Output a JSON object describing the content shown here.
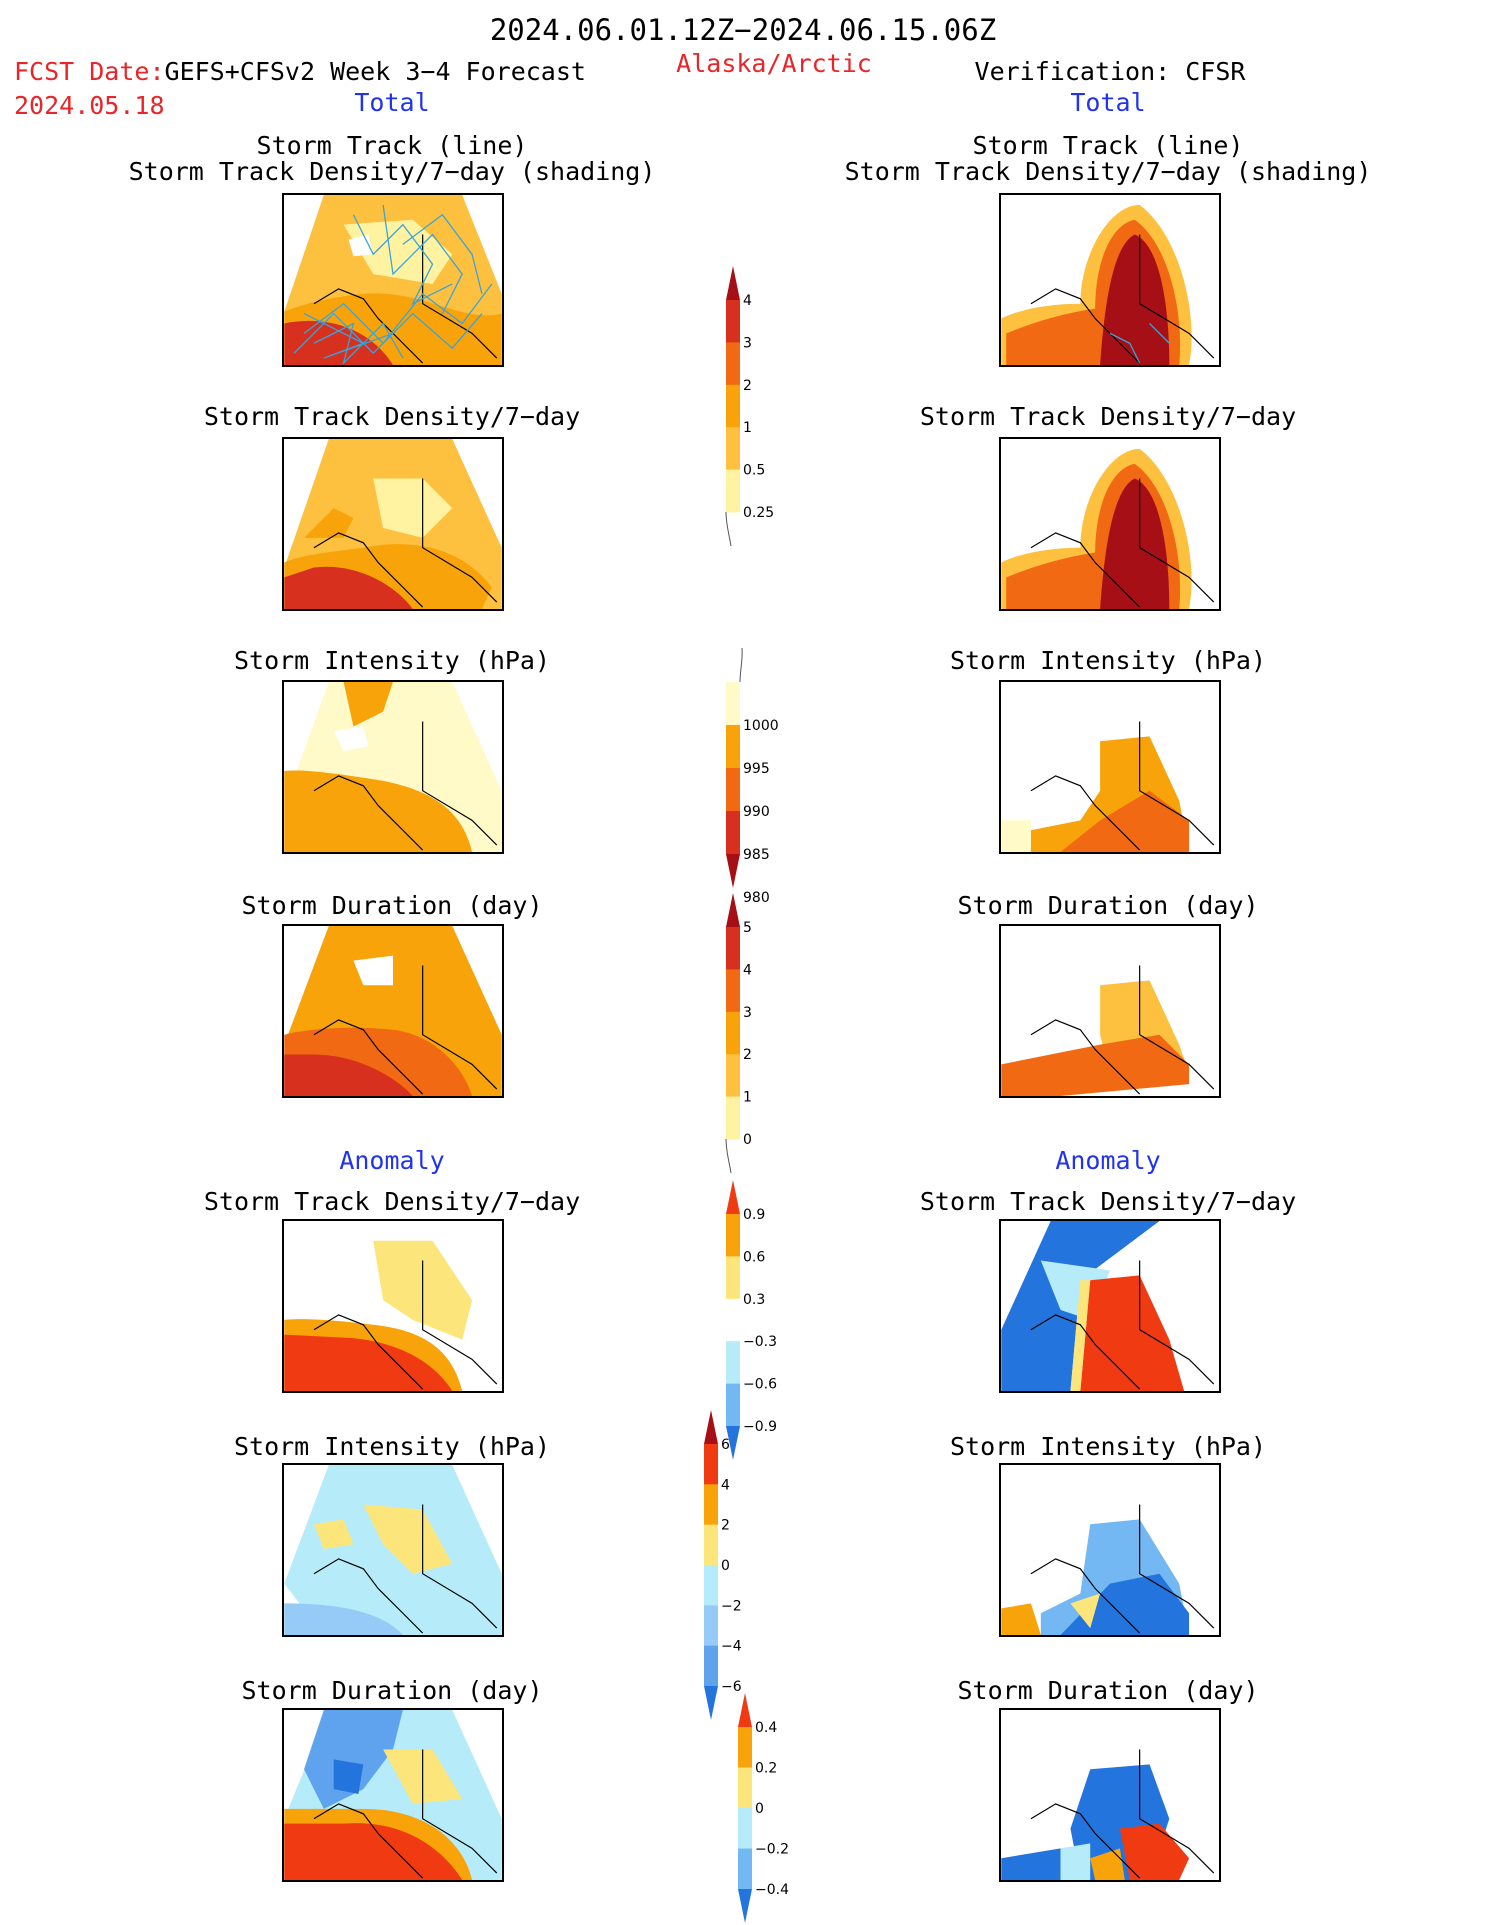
{
  "header": {
    "period": "2024.06.01.12Z−2024.06.15.06Z",
    "fcst_label": "FCST Date:",
    "fcst_model": "GEFS+CFSv2 Week 3−4 Forecast",
    "fcst_date": "2024.05.18",
    "region": "Alaska/Arctic",
    "verification": "Verification: CFSR"
  },
  "sections": {
    "total_left": "Total",
    "total_right": "Total",
    "anomaly_left": "Anomaly",
    "anomaly_right": "Anomaly"
  },
  "titles": {
    "track_line": "Storm Track (line)",
    "track_density_shading": "Storm Track Density/7−day (shading)",
    "track_density": "Storm Track Density/7−day",
    "intensity": "Storm Intensity (hPa)",
    "duration": "Storm Duration (day)"
  },
  "colorbars": {
    "density_total": {
      "labels": [
        "4",
        "3",
        "2",
        "1",
        "0.5",
        "0.25"
      ],
      "colors": [
        "#a50f15",
        "#d7301f",
        "#f16913",
        "#f8a30a",
        "#fdc13f",
        "#fff2a1"
      ]
    },
    "intensity_total": {
      "labels": [
        "1000",
        "995",
        "990",
        "985",
        "980"
      ],
      "colors": [
        "#fffac8",
        "#f8a30a",
        "#f16913",
        "#d7301f",
        "#a50f15"
      ]
    },
    "duration_total": {
      "labels": [
        "5",
        "4",
        "3",
        "2",
        "1",
        "0"
      ],
      "colors": [
        "#a50f15",
        "#d7301f",
        "#f16913",
        "#f8a30a",
        "#fdc13f",
        "#fff2a1"
      ]
    },
    "density_anom": {
      "labels": [
        "0.9",
        "0.6",
        "0.3",
        "−0.3",
        "−0.6",
        "−0.9"
      ],
      "colors": [
        "#f03b12",
        "#f8a30a",
        "#fce57a",
        "#ffffff",
        "#b6ecfa",
        "#73b8f2",
        "#2474dd"
      ]
    },
    "intensity_anom": {
      "labels": [
        "6",
        "4",
        "2",
        "0",
        "−2",
        "−4",
        "−6"
      ],
      "colors": [
        "#a50f15",
        "#f03b12",
        "#f8a30a",
        "#fce57a",
        "#b6ecfa",
        "#97cbf7",
        "#5fa3ef",
        "#2474dd"
      ]
    },
    "duration_anom": {
      "labels": [
        "0.4",
        "0.2",
        "0",
        "−0.2",
        "−0.4"
      ],
      "colors": [
        "#f03b12",
        "#f8a30a",
        "#fce57a",
        "#b6ecfa",
        "#73b8f2",
        "#2474dd"
      ]
    }
  }
}
